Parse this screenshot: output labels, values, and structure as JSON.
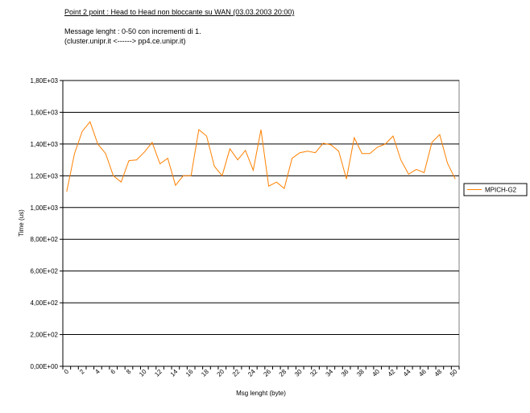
{
  "header": {
    "title": "Point 2 point : Head to Head non bloccante su WAN (03.03.2003 20:00)",
    "line1": "Message lenght :  0-50 con incrementi di 1.",
    "line2": "(cluster.unipr.it    <------>   pp4.ce.unipr.it)"
  },
  "chart_data": {
    "type": "line",
    "xlabel": "Msg lenght (byte)",
    "ylabel": "Time (us)",
    "ylim": [
      0,
      1800
    ],
    "y_ticks": [
      0,
      200,
      400,
      600,
      800,
      1000,
      1200,
      1400,
      1600,
      1800
    ],
    "y_tick_labels": [
      "0,00E+00",
      "2,00E+02",
      "4,00E+02",
      "6,00E+02",
      "8,00E+02",
      "1,00E+03",
      "1,20E+03",
      "1,40E+03",
      "1,60E+03",
      "1,80E+03"
    ],
    "x_tick_labels": [
      "0",
      "2",
      "4",
      "6",
      "8",
      "10",
      "12",
      "14",
      "16",
      "18",
      "20",
      "22",
      "24",
      "26",
      "28",
      "30",
      "32",
      "34",
      "36",
      "38",
      "40",
      "42",
      "44",
      "46",
      "48",
      "50"
    ],
    "grid": "horizontal",
    "legend_position": "right",
    "series": [
      {
        "name": "MPICH-G2",
        "color": "#ff8000",
        "x": [
          0,
          1,
          2,
          3,
          4,
          5,
          6,
          7,
          8,
          9,
          10,
          11,
          12,
          13,
          14,
          15,
          16,
          17,
          18,
          19,
          20,
          21,
          22,
          23,
          24,
          25,
          26,
          27,
          28,
          29,
          30,
          31,
          32,
          33,
          34,
          35,
          36,
          37,
          38,
          39,
          40,
          41,
          42,
          43,
          44,
          45,
          46,
          47,
          48,
          49,
          50
        ],
        "values": [
          1100,
          1340,
          1480,
          1540,
          1400,
          1340,
          1200,
          1160,
          1295,
          1300,
          1350,
          1410,
          1275,
          1310,
          1140,
          1200,
          1200,
          1490,
          1450,
          1260,
          1200,
          1370,
          1300,
          1360,
          1235,
          1490,
          1135,
          1160,
          1120,
          1310,
          1345,
          1355,
          1345,
          1405,
          1395,
          1355,
          1180,
          1440,
          1340,
          1340,
          1380,
          1400,
          1450,
          1300,
          1210,
          1240,
          1220,
          1410,
          1460,
          1280,
          1180
        ]
      }
    ]
  }
}
